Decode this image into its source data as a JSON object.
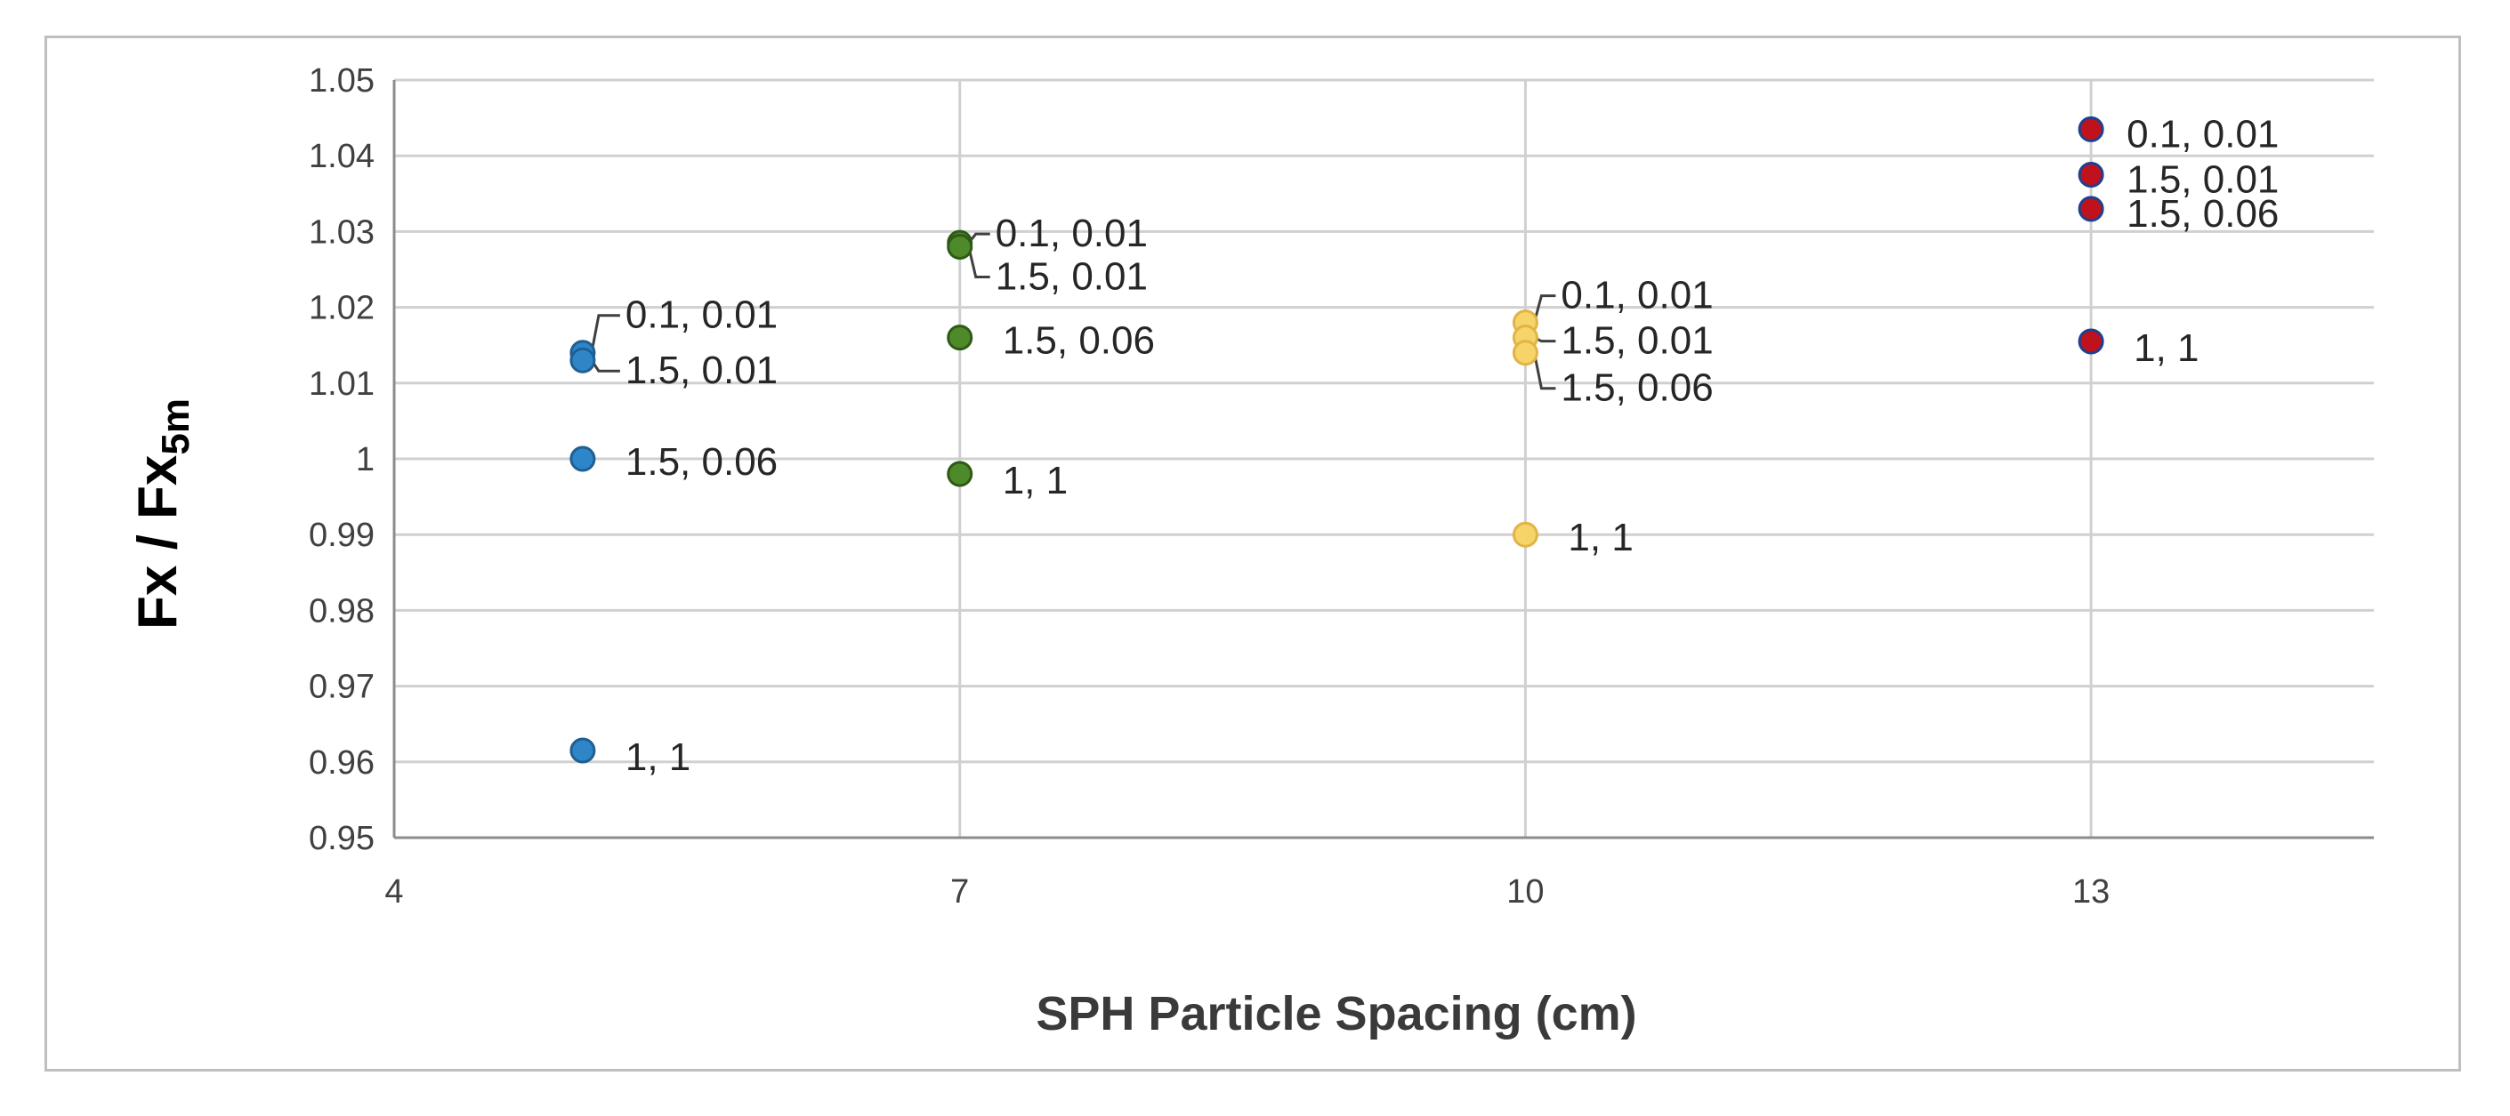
{
  "chart_data": {
    "type": "scatter",
    "xlabel": "SPH Particle Spacing (cm)",
    "ylabel": {
      "main": "Fx / Fx",
      "subscript": "5m"
    },
    "xlim": [
      4,
      14.5
    ],
    "ylim": [
      0.95,
      1.05
    ],
    "xticks": [
      "4",
      "7",
      "10",
      "13"
    ],
    "yticks": [
      "0.95",
      "0.96",
      "0.97",
      "0.98",
      "0.99",
      "1",
      "1.01",
      "1.02",
      "1.03",
      "1.04",
      "1.05"
    ],
    "grid": true,
    "legend": "none",
    "series": [
      {
        "color": "#2e86c8",
        "stroke": "#1f5f91",
        "points": [
          {
            "x": 5,
            "y": 1.014,
            "label": "0.1, 0.01"
          },
          {
            "x": 5,
            "y": 1.013,
            "label": "1.5, 0.01"
          },
          {
            "x": 5,
            "y": 1.0,
            "label": "1.5, 0.06"
          },
          {
            "x": 5,
            "y": 0.9615,
            "label": "1, 1"
          }
        ]
      },
      {
        "color": "#4e8a2a",
        "stroke": "#2f5a16",
        "points": [
          {
            "x": 7,
            "y": 1.0285,
            "label": "0.1, 0.01"
          },
          {
            "x": 7,
            "y": 1.028,
            "label": "1.5, 0.01"
          },
          {
            "x": 7,
            "y": 1.016,
            "label": "1.5, 0.06"
          },
          {
            "x": 7,
            "y": 0.998,
            "label": "1, 1"
          }
        ]
      },
      {
        "color": "#f7d46a",
        "stroke": "#e0b445",
        "points": [
          {
            "x": 10,
            "y": 1.018,
            "label": "0.1, 0.01"
          },
          {
            "x": 10,
            "y": 1.016,
            "label": "1.5, 0.01"
          },
          {
            "x": 10,
            "y": 1.014,
            "label": "1.5, 0.06"
          },
          {
            "x": 10,
            "y": 0.99,
            "label": "1, 1"
          }
        ]
      },
      {
        "color": "#c0121c",
        "stroke": "#1f3f8f",
        "points": [
          {
            "x": 13,
            "y": 1.0435,
            "label": "0.1, 0.01"
          },
          {
            "x": 13,
            "y": 1.0375,
            "label": "1.5, 0.01"
          },
          {
            "x": 13,
            "y": 1.033,
            "label": "1.5, 0.06"
          },
          {
            "x": 13,
            "y": 1.0155,
            "label": "1, 1"
          }
        ]
      }
    ]
  }
}
